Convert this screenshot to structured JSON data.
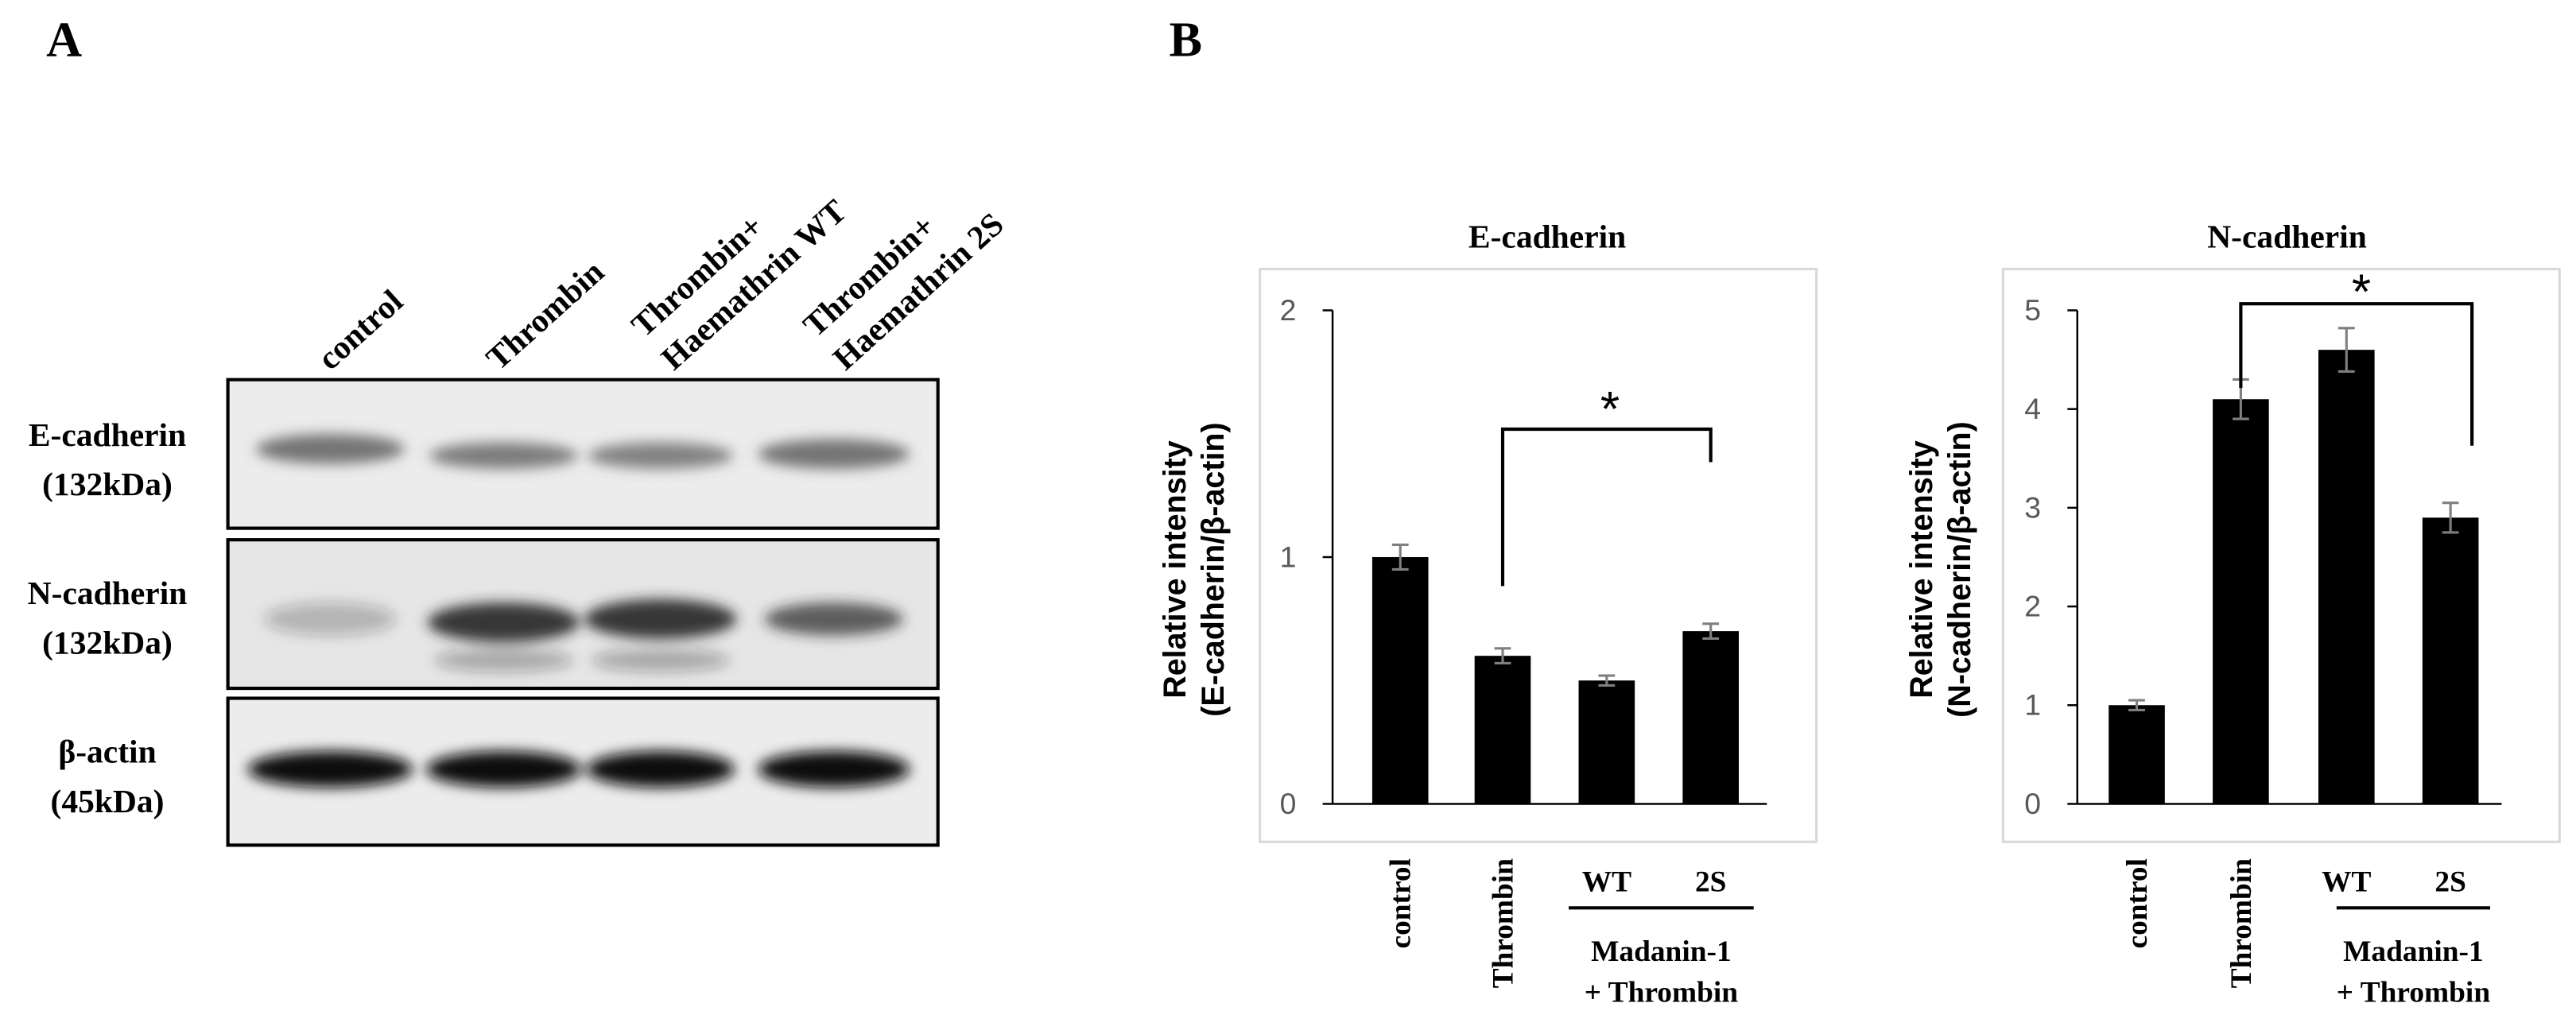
{
  "panel_labels": [
    "A",
    "B"
  ],
  "blot": {
    "lanes": [
      [
        "control"
      ],
      [
        "Thrombin"
      ],
      [
        "Thrombin+",
        "Haemathrin WT"
      ],
      [
        "Thrombin+",
        "Haemathrin 2S"
      ]
    ],
    "rows": [
      [
        "E-cadherin",
        "(132kDa)"
      ],
      [
        "N-cadherin",
        "(132kDa)"
      ],
      [
        "β-actin",
        "(45kDa)"
      ]
    ]
  },
  "chart_data": [
    {
      "type": "bar",
      "title": "E-cadherin",
      "ylabel": [
        "Relative intensity",
        "(E-cadherin/β-actin)"
      ],
      "categories": [
        "control",
        "Thrombin",
        "WT",
        "2S"
      ],
      "group_label": [
        "Madanin-1",
        "+ Thrombin"
      ],
      "values": [
        1.0,
        0.6,
        0.5,
        0.7
      ],
      "errors": [
        0.05,
        0.03,
        0.02,
        0.03
      ],
      "color": "#000000",
      "ylim": [
        0,
        2
      ],
      "yticks": [
        0,
        1,
        2
      ],
      "annotation": "*"
    },
    {
      "type": "bar",
      "title": "N-cadherin",
      "ylabel": [
        "Relative intensity",
        "(N-cadherin/β-actin)"
      ],
      "categories": [
        "control",
        "Thrombin",
        "WT",
        "2S"
      ],
      "group_label": [
        "Madanin-1",
        "+ Thrombin"
      ],
      "values": [
        1.0,
        4.1,
        4.6,
        2.9
      ],
      "errors": [
        0.05,
        0.2,
        0.22,
        0.15
      ],
      "color": "#000000",
      "ylim": [
        0,
        5
      ],
      "yticks": [
        0,
        1,
        2,
        3,
        4,
        5
      ],
      "annotation": "*"
    }
  ]
}
